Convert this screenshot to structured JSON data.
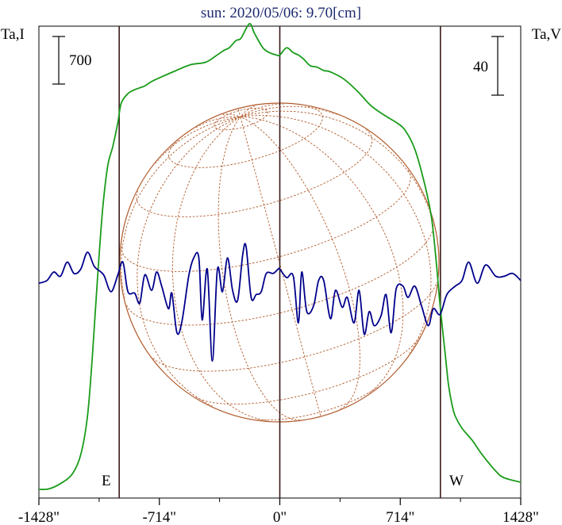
{
  "chart_data": {
    "type": "line",
    "title": "sun: 2020/05/06: 9.70[cm]",
    "left_axis_label": "Ta,I",
    "right_axis_label": "Ta,V",
    "left_scale_bar": "700",
    "right_scale_bar": "40",
    "limb_labels": {
      "east": "E",
      "west": "W"
    },
    "x_unit": "arcsec",
    "xlim": [
      -1428,
      1428
    ],
    "x_ticks": [
      {
        "value": -1428,
        "label": "-1428\""
      },
      {
        "value": -714,
        "label": "-714\""
      },
      {
        "value": 0,
        "label": "0\""
      },
      {
        "value": 714,
        "label": "714\""
      },
      {
        "value": 1428,
        "label": "1428\""
      }
    ],
    "vertical_lines_x": [
      -952,
      0,
      952
    ],
    "grid": false,
    "colors": {
      "stokes_i": "#1a9c1a",
      "stokes_v": "#00008b",
      "solar_disk": "#b05a2a",
      "frame": "#000000",
      "vertical_lines": "#3a1a1a",
      "title_text": "#1c2a6e"
    },
    "stokes_i": {
      "label": "Ta,I",
      "y_unit": "relative (scale bar 700)",
      "ylim": [
        0,
        9800
      ],
      "x": [
        -1428,
        -1370,
        -1300,
        -1230,
        -1180,
        -1140,
        -1110,
        -1080,
        -1050,
        -1020,
        -990,
        -960,
        -940,
        -900,
        -860,
        -830,
        -800,
        -760,
        -700,
        -620,
        -530,
        -440,
        -380,
        -330,
        -300,
        -260,
        -230,
        -180,
        -150,
        -100,
        -60,
        -20,
        0,
        40,
        80,
        110,
        140,
        180,
        220,
        260,
        300,
        380,
        460,
        540,
        620,
        690,
        740,
        800,
        860,
        900,
        930,
        950,
        980,
        1000,
        1020,
        1040,
        1080,
        1140,
        1200,
        1280,
        1330,
        1428
      ],
      "values": [
        180,
        190,
        300,
        500,
        900,
        1700,
        3000,
        4600,
        6000,
        6900,
        7300,
        7800,
        8200,
        8400,
        8480,
        8520,
        8560,
        8650,
        8750,
        8870,
        9000,
        9050,
        9180,
        9300,
        9350,
        9500,
        9550,
        9850,
        9650,
        9350,
        9250,
        9200,
        9200,
        9350,
        9250,
        9200,
        9120,
        8980,
        8950,
        8880,
        8850,
        8700,
        8450,
        8150,
        7950,
        7800,
        7650,
        7250,
        6500,
        5800,
        4800,
        4000,
        3000,
        2350,
        1950,
        1700,
        1450,
        1200,
        900,
        560,
        420,
        330
      ]
    },
    "stokes_v": {
      "label": "Ta,V",
      "y_unit": "relative (scale bar 40)",
      "ylim": [
        -162,
        172
      ],
      "x": [
        -1428,
        -1380,
        -1340,
        -1300,
        -1260,
        -1220,
        -1180,
        -1140,
        -1100,
        -1060,
        -1040,
        -1000,
        -960,
        -930,
        -900,
        -860,
        -830,
        -800,
        -760,
        -730,
        -700,
        -660,
        -640,
        -610,
        -580,
        -540,
        -510,
        -480,
        -460,
        -430,
        -400,
        -370,
        -340,
        -310,
        -280,
        -250,
        -220,
        -200,
        -170,
        -140,
        -110,
        -80,
        -40,
        -10,
        0,
        40,
        80,
        110,
        130,
        160,
        200,
        230,
        260,
        300,
        330,
        370,
        400,
        440,
        470,
        500,
        530,
        560,
        600,
        630,
        660,
        690,
        730,
        760,
        800,
        840,
        880,
        910,
        950,
        990,
        1040,
        1080,
        1120,
        1170,
        1220,
        1280,
        1330,
        1380,
        1428
      ],
      "values": [
        -10,
        -8,
        -2,
        -5,
        5,
        -3,
        0,
        12,
        2,
        -2,
        -5,
        -16,
        -4,
        5,
        -16,
        -17,
        -24,
        -4,
        -15,
        -2,
        -12,
        -28,
        -17,
        -45,
        -37,
        -5,
        8,
        8,
        -36,
        0,
        -65,
        0,
        -16,
        8,
        -15,
        -22,
        10,
        16,
        -20,
        -18,
        -16,
        -3,
        -3,
        0,
        0,
        -6,
        -5,
        -38,
        -2,
        -30,
        -26,
        -8,
        -8,
        -35,
        -15,
        -27,
        -20,
        -38,
        -15,
        -46,
        -30,
        -40,
        -33,
        -18,
        -45,
        -14,
        -12,
        -20,
        -12,
        -26,
        -40,
        -28,
        -32,
        -18,
        -12,
        -8,
        5,
        -10,
        3,
        -5,
        -5,
        -3,
        -8
      ]
    },
    "disk": {
      "center_x": 0,
      "radius": 952,
      "shape": "circle with dashed heliographic grid"
    }
  }
}
